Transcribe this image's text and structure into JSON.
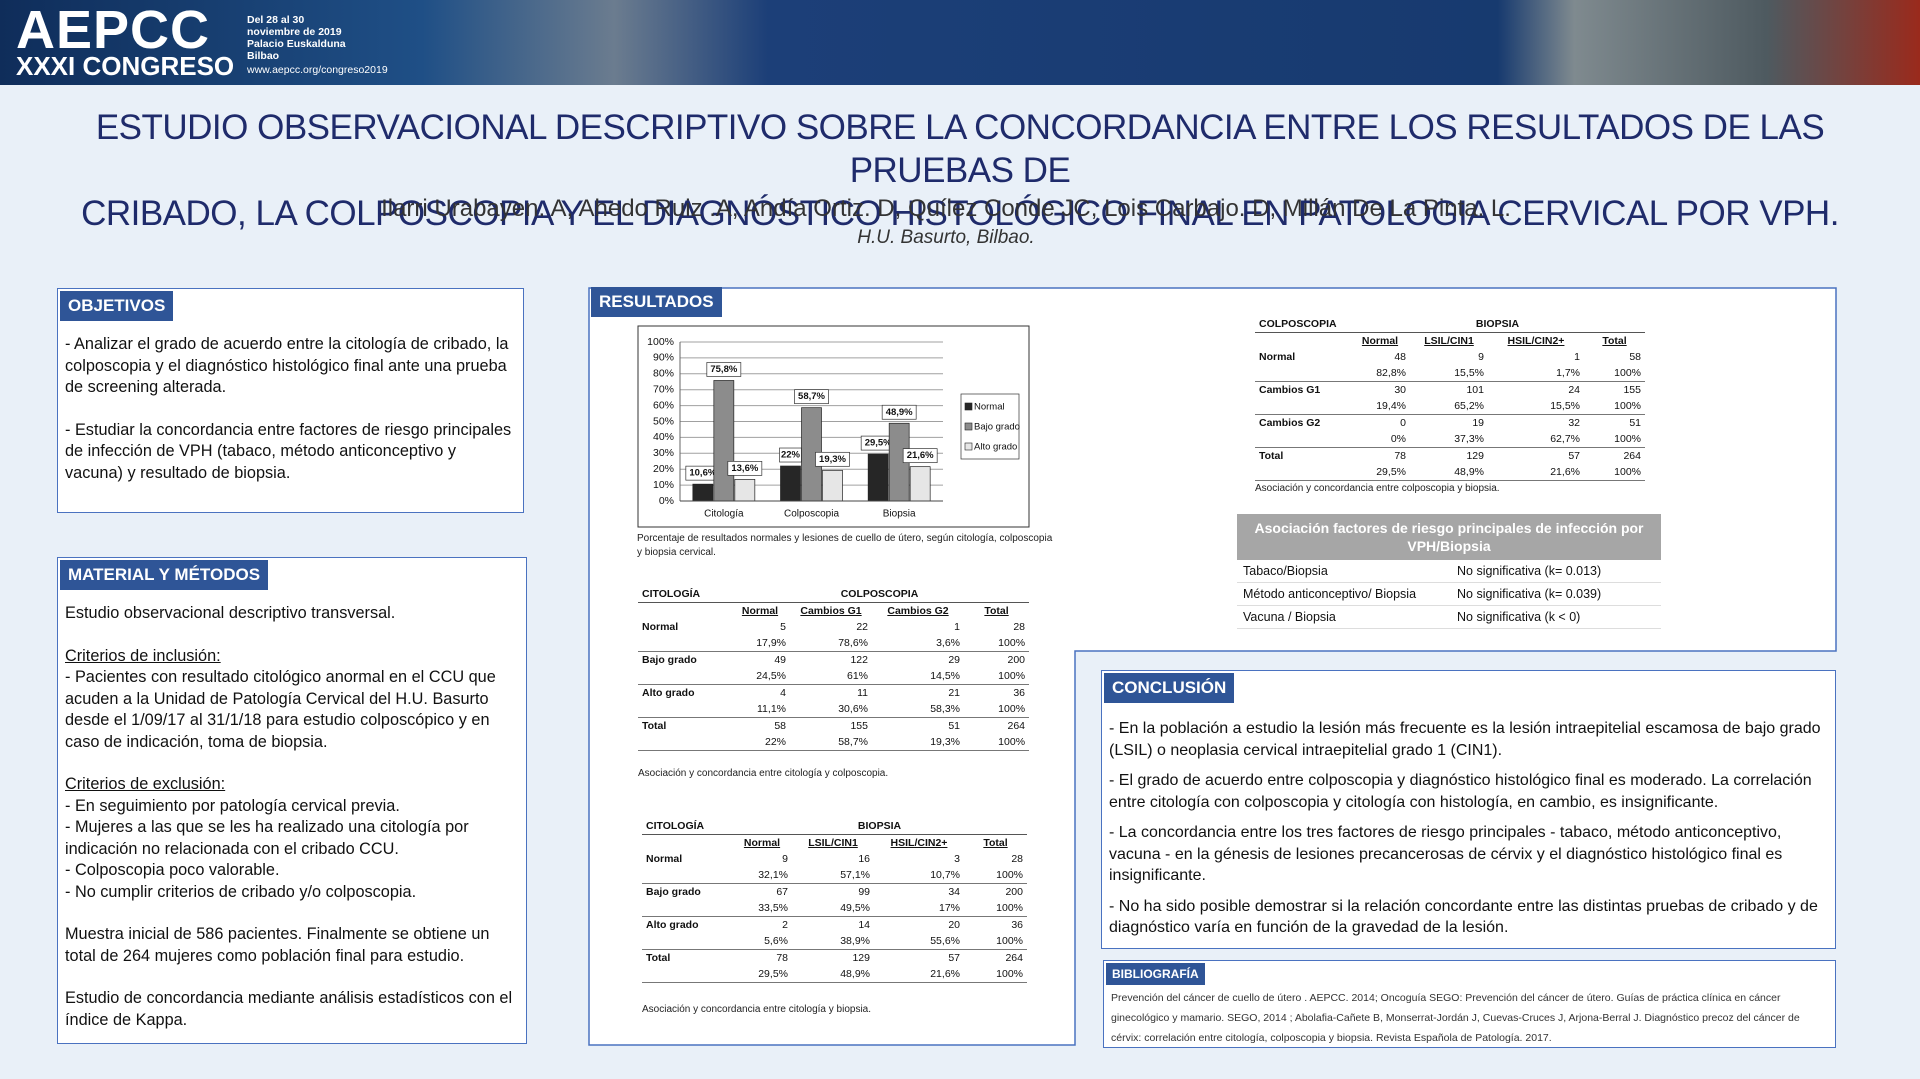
{
  "header": {
    "logo": "AEPCC",
    "congress": "XXXI CONGRESO",
    "info": [
      "Del 28 al 30",
      "noviembre de 2019",
      "Palacio Euskalduna",
      "Bilbao"
    ],
    "url": "www.aepcc.org/congreso2019"
  },
  "title": [
    "ESTUDIO OBSERVACIONAL DESCRIPTIVO SOBRE LA CONCORDANCIA ENTRE LOS RESULTADOS DE LAS PRUEBAS DE",
    "CRIBADO, LA COLPOSCOPIA Y EL DIAGNÓSTICO HISTOLÓGICO FINAL EN PATOLOGIA CERVICAL POR VPH."
  ],
  "authors": "Ilarri Urabayen. A, Ahedo Ruiz .A, Andía Ortiz. D, Quílez Conde JC, Lois Carbajo. D, Millán De La Pinta. L.",
  "affiliation": "H.U. Basurto, Bilbao.",
  "objetivos": {
    "heading": "OBJETIVOS",
    "paragraphs": [
      "- Analizar el grado de acuerdo entre la citología de cribado, la colposcopia y el diagnóstico histológico final ante una prueba de screening alterada.",
      "- Estudiar la concordancia entre factores de riesgo principales de infección de VPH (tabaco, método anticonceptivo y vacuna) y resultado de biopsia."
    ]
  },
  "metodos": {
    "heading": "MATERIAL Y MÉTODOS",
    "blocks": [
      {
        "lines": [
          "Estudio observacional descriptivo transversal."
        ]
      },
      {
        "subtitle": "Criterios de inclusión:",
        "lines": [
          "- Pacientes con resultado citológico anormal en el CCU que acuden a la Unidad de Patología Cervical del H.U. Basurto desde el 1/09/17 al 31/1/18 para estudio colposcópico y en caso de indicación, toma de biopsia."
        ]
      },
      {
        "subtitle": "Criterios de exclusión:",
        "lines": [
          "- En seguimiento por patología cervical previa.",
          "- Mujeres a las que se les ha realizado una citología por indicación no relacionada con el cribado CCU.",
          "- Colposcopia poco valorable.",
          "- No cumplir criterios de cribado y/o colposcopia."
        ]
      },
      {
        "lines": [
          "Muestra inicial de 586 pacientes. Finalmente  se obtiene un total de 264 mujeres como población final para estudio."
        ]
      },
      {
        "lines": [
          "Estudio de concordancia mediante análisis estadísticos con el índice de Kappa."
        ]
      }
    ]
  },
  "resultados": {
    "heading": "RESULTADOS",
    "tables": [
      {
        "row_header": "CITOLOGÍA",
        "col_group": "COLPOSCOPIA",
        "columns": [
          "Normal",
          "Cambios G1",
          "Cambios G2",
          "Total"
        ],
        "rows": [
          {
            "label": "Normal",
            "counts": [
              5,
              22,
              1,
              28
            ],
            "pcts": [
              "17,9%",
              "78,6%",
              "3,6%",
              "100%"
            ]
          },
          {
            "label": "Bajo grado",
            "counts": [
              49,
              122,
              29,
              200
            ],
            "pcts": [
              "24,5%",
              "61%",
              "14,5%",
              "100%"
            ]
          },
          {
            "label": "Alto grado",
            "counts": [
              4,
              11,
              21,
              36
            ],
            "pcts": [
              "11,1%",
              "30,6%",
              "58,3%",
              "100%"
            ]
          },
          {
            "label": "Total",
            "counts": [
              58,
              155,
              51,
              264
            ],
            "pcts": [
              "22%",
              "58,7%",
              "19,3%",
              "100%"
            ]
          }
        ],
        "caption": "Asociación y concordancia entre citología y colposcopia."
      },
      {
        "row_header": "CITOLOGÍA",
        "col_group": "BIOPSIA",
        "columns": [
          "Normal",
          "LSIL/CIN1",
          "HSIL/CIN2+",
          "Total"
        ],
        "rows": [
          {
            "label": "Normal",
            "counts": [
              9,
              16,
              3,
              28
            ],
            "pcts": [
              "32,1%",
              "57,1%",
              "10,7%",
              "100%"
            ]
          },
          {
            "label": "Bajo grado",
            "counts": [
              67,
              99,
              34,
              200
            ],
            "pcts": [
              "33,5%",
              "49,5%",
              "17%",
              "100%"
            ]
          },
          {
            "label": "Alto grado",
            "counts": [
              2,
              14,
              20,
              36
            ],
            "pcts": [
              "5,6%",
              "38,9%",
              "55,6%",
              "100%"
            ]
          },
          {
            "label": "Total",
            "counts": [
              78,
              129,
              57,
              264
            ],
            "pcts": [
              "29,5%",
              "48,9%",
              "21,6%",
              "100%"
            ]
          }
        ],
        "caption": "Asociación y concordancia entre citología y biopsia."
      },
      {
        "row_header": "COLPOSCOPIA",
        "col_group": "BIOPSIA",
        "columns": [
          "Normal",
          "LSIL/CIN1",
          "HSIL/CIN2+",
          "Total"
        ],
        "rows": [
          {
            "label": "Normal",
            "counts": [
              48,
              9,
              1,
              58
            ],
            "pcts": [
              "82,8%",
              "15,5%",
              "1,7%",
              "100%"
            ]
          },
          {
            "label": "Cambios G1",
            "counts": [
              30,
              101,
              24,
              155
            ],
            "pcts": [
              "19,4%",
              "65,2%",
              "15,5%",
              "100%"
            ]
          },
          {
            "label": "Cambios G2",
            "counts": [
              0,
              19,
              32,
              51
            ],
            "pcts": [
              "0%",
              "37,3%",
              "62,7%",
              "100%"
            ]
          },
          {
            "label": "Total",
            "counts": [
              78,
              129,
              57,
              264
            ],
            "pcts": [
              "29,5%",
              "48,9%",
              "21,6%",
              "100%"
            ]
          }
        ],
        "caption": "Asociación y concordancia entre colposcopia y biopsia."
      }
    ],
    "risk_table": {
      "header": "Asociación factores de riesgo principales de infección por VPH/Biopsia",
      "rows": [
        [
          "Tabaco/Biopsia",
          "No significativa (k= 0.013)"
        ],
        [
          "Método anticonceptivo/ Biopsia",
          "No significativa (k= 0.039)"
        ],
        [
          "Vacuna / Biopsia",
          "No significativa (k < 0)"
        ]
      ]
    }
  },
  "chart_data": {
    "type": "bar",
    "categories": [
      "Citología",
      "Colposcopia",
      "Biopsia"
    ],
    "series": [
      {
        "name": "Normal",
        "color": "#262626",
        "values": [
          10.6,
          22,
          29.5
        ],
        "value_labels": [
          "10,6%",
          "22%",
          "29,5%"
        ]
      },
      {
        "name": "Bajo grado",
        "color": "#8c8c8c",
        "values": [
          75.8,
          58.7,
          48.9
        ],
        "value_labels": [
          "75,8%",
          "58,7%",
          "48,9%"
        ]
      },
      {
        "name": "Alto grado",
        "color": "#e6e6e6",
        "values": [
          13.6,
          19.3,
          21.6
        ],
        "value_labels": [
          "13,6%",
          "19,3%",
          "21,6%"
        ]
      }
    ],
    "ylim": [
      0,
      100
    ],
    "yticks": [
      {
        "value": 0,
        "label": "0%"
      },
      {
        "value": 10,
        "label": "10%"
      },
      {
        "value": 20,
        "label": "20%"
      },
      {
        "value": 30,
        "label": "30%"
      },
      {
        "value": 40,
        "label": "40%"
      },
      {
        "value": 50,
        "label": "50%"
      },
      {
        "value": 60,
        "label": "60%"
      },
      {
        "value": 70,
        "label": "70%"
      },
      {
        "value": 80,
        "label": "80%"
      },
      {
        "value": 90,
        "label": "90%"
      },
      {
        "value": 100,
        "label": "100%"
      }
    ],
    "grid": true,
    "legend": "right",
    "caption": "Porcentaje de resultados normales y lesiones de cuello de útero, según citología, colposcopia y biopsia cervical."
  },
  "conclusion": {
    "heading": "CONCLUSIÓN",
    "paragraphs": [
      "- En la población a estudio la lesión más frecuente es la lesión intraepitelial escamosa de bajo grado (LSIL) o neoplasia cervical intraepitelial grado 1 (CIN1).",
      "- El grado de acuerdo entre colposcopia y diagnóstico histológico final es moderado. La correlación entre citología con colposcopia y citología con histología, en cambio, es insignificante.",
      "- La concordancia entre los tres factores de riesgo principales - tabaco, método anticonceptivo, vacuna - en la génesis de lesiones precancerosas de cérvix y el diagnóstico histológico final es insignificante.",
      "- No ha sido posible demostrar si la relación concordante entre las distintas pruebas de cribado y de diagnóstico varía en función de la gravedad de la lesión."
    ]
  },
  "bibliografia": {
    "heading": "BIBLIOGRAFÍA",
    "text": "Prevención del cáncer de cuello de útero . AEPCC. 2014; Oncoguía SEGO: Prevención del cáncer de útero. Guías de práctica clínica en cáncer ginecológico y mamario. SEGO, 2014 ; Abolafia-Cañete B, Monserrat-Jordán J, Cuevas-Cruces J, Arjona-Berral J. Diagnóstico precoz del cáncer de cérvix: correlación entre citología, colposcopia y biopsia. Revista Española de Patología. 2017."
  }
}
